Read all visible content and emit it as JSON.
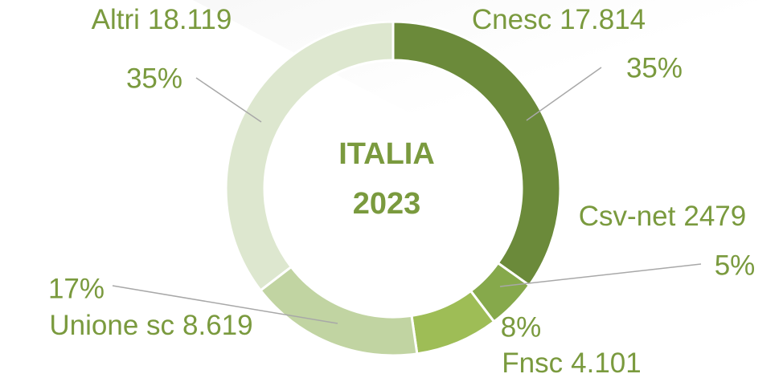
{
  "chart_data": {
    "type": "donut",
    "title": "ITALIA",
    "subtitle": "2023",
    "categories": [
      "Cnesc",
      "Csv-net",
      "Fnsc",
      "Unione sc",
      "Altri"
    ],
    "values": [
      17814,
      2479,
      4101,
      8619,
      18119
    ],
    "value_labels": [
      "17.814",
      "2479",
      "4.101",
      "8.619",
      "18.119"
    ],
    "percent_labels": [
      "35%",
      "5%",
      "8%",
      "17%",
      "35%"
    ],
    "colors": [
      "#6b8a3a",
      "#86a94b",
      "#9ebd56",
      "#c1d4a2",
      "#dde7cf"
    ]
  }
}
